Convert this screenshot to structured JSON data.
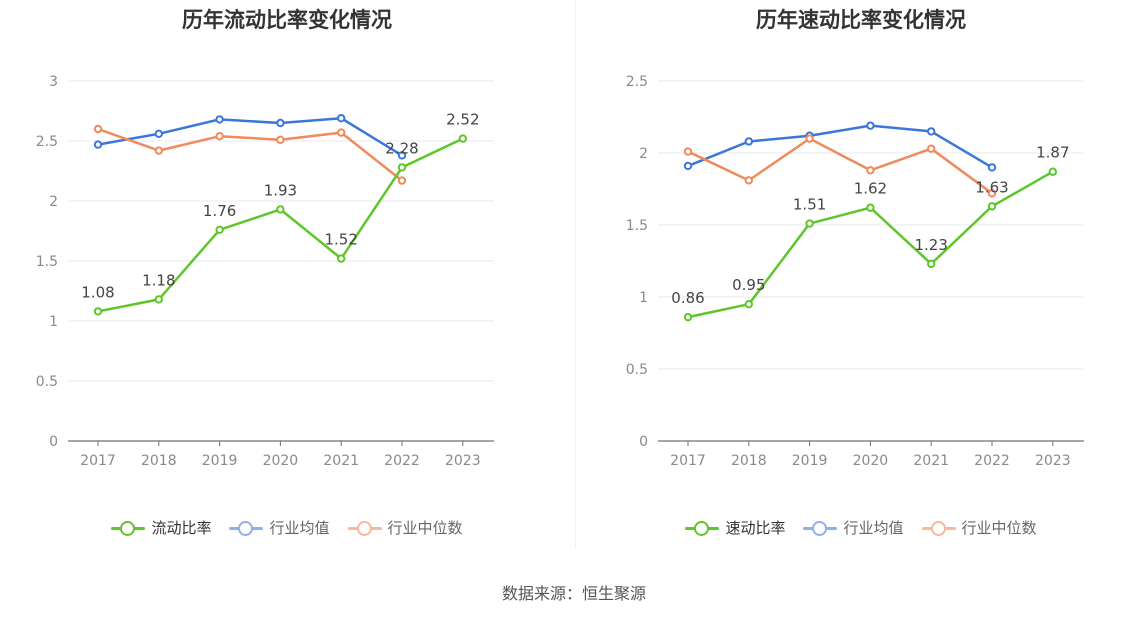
{
  "source_label": "数据来源：恒生聚源",
  "colors": {
    "green": "#5dc629",
    "blue": "#3b76db",
    "orange": "#f08a5b",
    "blue_light": "#8fb0ea",
    "orange_light": "#f5b89c"
  },
  "chart_data": [
    {
      "type": "line",
      "title": "历年流动比率变化情况",
      "categories": [
        "2017",
        "2018",
        "2019",
        "2020",
        "2021",
        "2022",
        "2023"
      ],
      "ylim": [
        0,
        3
      ],
      "yticks": [
        "0",
        "0.5",
        "1",
        "1.5",
        "2",
        "2.5",
        "3"
      ],
      "grid": true,
      "legend_position": "bottom",
      "series": [
        {
          "name": "流动比率",
          "color": "#5dc629",
          "values": [
            1.08,
            1.18,
            1.76,
            1.93,
            1.52,
            2.28,
            2.52
          ],
          "labels": [
            "1.08",
            "1.18",
            "1.76",
            "1.93",
            "1.52",
            "2.28",
            "2.52"
          ]
        },
        {
          "name": "行业均值",
          "color": "#3b76db",
          "values": [
            2.47,
            2.56,
            2.68,
            2.65,
            2.69,
            2.38,
            null
          ]
        },
        {
          "name": "行业中位数",
          "color": "#f08a5b",
          "values": [
            2.6,
            2.42,
            2.54,
            2.51,
            2.57,
            2.17,
            null
          ]
        }
      ]
    },
    {
      "type": "line",
      "title": "历年速动比率变化情况",
      "categories": [
        "2017",
        "2018",
        "2019",
        "2020",
        "2021",
        "2022",
        "2023"
      ],
      "ylim": [
        0,
        2.5
      ],
      "yticks": [
        "0",
        "0.5",
        "1",
        "1.5",
        "2",
        "2.5"
      ],
      "grid": true,
      "legend_position": "bottom",
      "series": [
        {
          "name": "速动比率",
          "color": "#5dc629",
          "values": [
            0.86,
            0.95,
            1.51,
            1.62,
            1.23,
            1.63,
            1.87
          ],
          "labels": [
            "0.86",
            "0.95",
            "1.51",
            "1.62",
            "1.23",
            "1.63",
            "1.87"
          ]
        },
        {
          "name": "行业均值",
          "color": "#3b76db",
          "values": [
            1.91,
            2.08,
            2.12,
            2.19,
            2.15,
            1.9,
            null
          ]
        },
        {
          "name": "行业中位数",
          "color": "#f08a5b",
          "values": [
            2.01,
            1.81,
            2.1,
            1.88,
            2.03,
            1.72,
            null
          ]
        }
      ]
    }
  ]
}
